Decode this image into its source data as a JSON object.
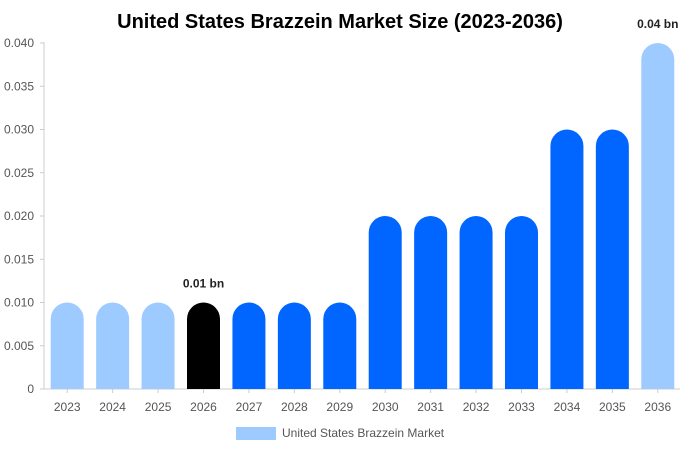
{
  "chart_data": {
    "type": "bar",
    "title": "United States Brazzein Market Size (2023-2036)",
    "categories": [
      "2023",
      "2024",
      "2025",
      "2026",
      "2027",
      "2028",
      "2029",
      "2030",
      "2031",
      "2032",
      "2033",
      "2034",
      "2035",
      "2036"
    ],
    "series": [
      {
        "name": "United States Brazzein Market",
        "values": [
          0.01,
          0.01,
          0.01,
          0.01,
          0.01,
          0.01,
          0.01,
          0.02,
          0.02,
          0.02,
          0.02,
          0.03,
          0.03,
          0.04
        ]
      }
    ],
    "bar_colors": [
      "#9ecbff",
      "#9ecbff",
      "#9ecbff",
      "#000000",
      "#0066ff",
      "#0066ff",
      "#0066ff",
      "#0066ff",
      "#0066ff",
      "#0066ff",
      "#0066ff",
      "#0066ff",
      "#0066ff",
      "#9ecbff"
    ],
    "data_labels": [
      {
        "category": "2026",
        "text": "0.01 bn"
      },
      {
        "category": "2036",
        "text": "0.04 bn"
      }
    ],
    "yticks": [
      "0",
      "0.005",
      "0.010",
      "0.015",
      "0.020",
      "0.025",
      "0.030",
      "0.035",
      "0.040"
    ],
    "ylim": [
      0,
      0.04
    ],
    "legend": {
      "position": "bottom",
      "color": "#9ecbff"
    },
    "grid": false
  }
}
